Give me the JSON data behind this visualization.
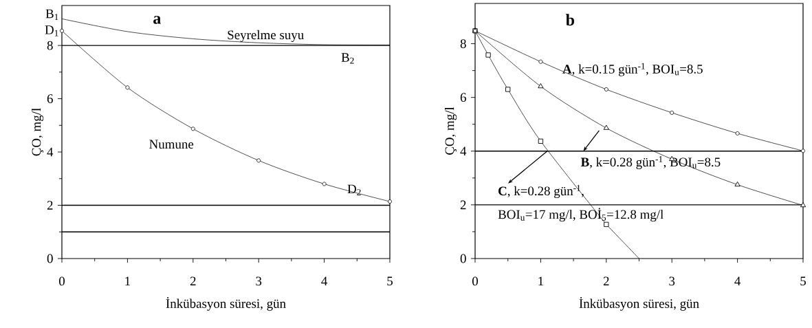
{
  "chart_data": [
    {
      "type": "line",
      "title": "a",
      "xlabel": "İnkübasyon süresi, gün",
      "ylabel": "ÇO, mg/l",
      "xlim": [
        0,
        5
      ],
      "ylim": [
        0,
        9.5
      ],
      "xticks": [
        0,
        1,
        2,
        3,
        4,
        5
      ],
      "yticks": [
        0,
        2,
        4,
        6,
        8
      ],
      "grid": false,
      "line_style": "solid",
      "x": [
        0,
        1,
        2,
        3,
        4,
        5
      ],
      "series": [
        {
          "name": "Seyrelme suyu",
          "color": "#000000",
          "marker": "none",
          "values": [
            9.0,
            8.52,
            8.25,
            8.1,
            8.03,
            8.02
          ]
        },
        {
          "name": "Numune",
          "color": "#000000",
          "marker": "circle",
          "values": [
            8.55,
            6.42,
            4.87,
            3.68,
            2.8,
            2.14
          ]
        }
      ],
      "ref_lines": [
        {
          "axis": "y",
          "value": 8,
          "label": null
        },
        {
          "axis": "y",
          "value": 2,
          "label": null
        },
        {
          "axis": "y",
          "value": 1,
          "label": null
        }
      ],
      "annotations": [
        {
          "text": "B$_{1}$",
          "x": 0,
          "y": 9.0
        },
        {
          "text": "D$_{1}$",
          "x": 0,
          "y": 8.55
        },
        {
          "text": "B$_{2}$",
          "x": 5,
          "y": 8
        },
        {
          "text": "D$_{2}$",
          "x": 5,
          "y": 2.14
        }
      ]
    },
    {
      "type": "line",
      "title": "b",
      "xlabel": "İnkübasyon süresi, gün",
      "ylabel": "ÇO, mg/l",
      "xlim": [
        0,
        5
      ],
      "ylim": [
        0,
        9.5
      ],
      "xticks": [
        0,
        1,
        2,
        3,
        4,
        5
      ],
      "yticks": [
        0,
        2,
        4,
        6,
        8
      ],
      "grid": false,
      "line_style": "solid",
      "x": [
        0,
        1,
        2,
        3,
        4,
        5
      ],
      "series": [
        {
          "name": "**A**, k=0.15 gün$^{-1}$, BOI$_{u}$=8.5",
          "color": "#000000",
          "marker": "circle",
          "values": [
            8.48,
            7.33,
            6.3,
            5.43,
            4.66,
            4.01
          ]
        },
        {
          "color": "#000000",
          "marker": "triangle",
          "values": [
            8.48,
            6.41,
            4.86,
            3.7,
            2.75,
            1.98
          ]
        },
        {
          "color": "#000000",
          "marker": "square",
          "x": [
            0,
            0.2,
            0.5,
            1,
            2
          ],
          "values": [
            8.48,
            7.58,
            6.3,
            4.37,
            1.27
          ]
        },
        {
          "color": "#000000",
          "marker": "none",
          "x": [
            2,
            2.5
          ],
          "values": [
            1.27,
            0
          ]
        }
      ],
      "ref_lines": [
        {
          "axis": "y",
          "value": 4,
          "label": null
        },
        {
          "axis": "y",
          "value": 2,
          "label": null
        }
      ],
      "annotations": [
        {
          "text": "**B**, k=0.28 gün$^{-1}$, BOI$_{u}$=8.5",
          "x": 1.65,
          "y": 4.0
        },
        {
          "text": "**C**, k=0.28 gün$^{-1}$,",
          "x": 1.1,
          "y": 4.0
        },
        "BOI$_{u}$=17 mg/l, BOİ$_{5}$=12.8 mg/l"
      ]
    }
  ]
}
